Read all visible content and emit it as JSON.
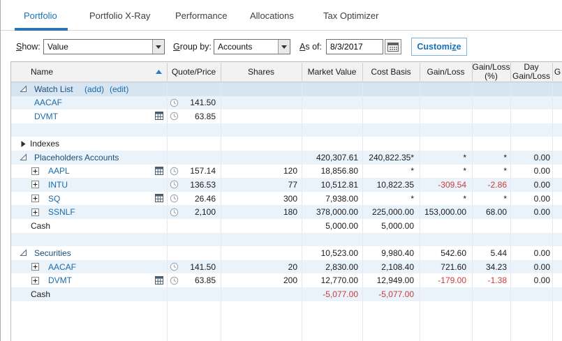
{
  "tabs": [
    {
      "label": "Portfolio",
      "active": true
    },
    {
      "label": "Portfolio X-Ray",
      "active": false
    },
    {
      "label": "Performance",
      "active": false
    },
    {
      "label": "Allocations",
      "active": false
    },
    {
      "label": "Tax Optimizer",
      "active": false
    }
  ],
  "toolbar": {
    "show": {
      "accel": "S",
      "rest": "how:",
      "value": "Value"
    },
    "group_by": {
      "accel": "G",
      "rest": "roup by:",
      "value": "Accounts"
    },
    "as_of": {
      "accel": "A",
      "rest": "s of:",
      "value": "8/3/2017"
    },
    "customize": {
      "pre": "Customi",
      "accel": "z",
      "post": "e"
    }
  },
  "table": {
    "name_header": "Name",
    "sort": {
      "column": "Name",
      "direction": "ascending"
    },
    "columns": [
      {
        "key": "qp",
        "lines": [
          "Quote/Price"
        ]
      },
      {
        "key": "shares",
        "lines": [
          "Shares"
        ]
      },
      {
        "key": "mv",
        "lines": [
          "Market Value"
        ]
      },
      {
        "key": "cb",
        "lines": [
          "Cost Basis"
        ]
      },
      {
        "key": "gl",
        "lines": [
          "Gain/Loss"
        ]
      },
      {
        "key": "glp",
        "lines": [
          "Gain/Loss",
          "(%)"
        ]
      },
      {
        "key": "day",
        "lines": [
          "Day",
          "Gain/Loss"
        ]
      },
      {
        "key": "g",
        "lines": [
          "",
          "G"
        ]
      }
    ],
    "rows": [
      {
        "kind": "group",
        "name": "Watch List",
        "links": [
          "(add)",
          "(edit)"
        ],
        "selected": true
      },
      {
        "kind": "witem",
        "name": "AACAF",
        "clock": true,
        "qp": "141.50"
      },
      {
        "kind": "witem",
        "name": "DVMT",
        "calc": true,
        "clock": true,
        "qp": "63.85"
      },
      {
        "kind": "empty"
      },
      {
        "kind": "collapsed",
        "name": "Indexes"
      },
      {
        "kind": "group",
        "name": "Placeholders Accounts",
        "mv": "420,307.61",
        "cb": "240,822.35*",
        "gl": "*",
        "glp": "*",
        "day": "0.00"
      },
      {
        "kind": "position",
        "name": "AAPL",
        "calc": true,
        "clock": true,
        "qp": "157.14",
        "shares": "120",
        "mv": "18,856.80",
        "cb": "*",
        "gl": "*",
        "glp": "*",
        "day": "0.00"
      },
      {
        "kind": "position",
        "name": "INTU",
        "clock": true,
        "qp": "136.53",
        "shares": "77",
        "mv": "10,512.81",
        "cb": "10,822.35",
        "gl": "-309.54",
        "glp": "-2.86",
        "day": "0.00"
      },
      {
        "kind": "position",
        "name": "SQ",
        "calc": true,
        "clock": true,
        "qp": "26.46",
        "shares": "300",
        "mv": "7,938.00",
        "cb": "*",
        "gl": "*",
        "glp": "*",
        "day": "0.00"
      },
      {
        "kind": "position",
        "name": "SSNLF",
        "clock": true,
        "qp": "2,100",
        "shares": "180",
        "mv": "378,000.00",
        "cb": "225,000.00",
        "gl": "153,000.00",
        "glp": "68.00",
        "day": "0.00"
      },
      {
        "kind": "cash",
        "name": "Cash",
        "mv": "5,000.00",
        "cb": "5,000.00"
      },
      {
        "kind": "empty"
      },
      {
        "kind": "group",
        "name": "Securities",
        "mv": "10,523.00",
        "cb": "9,980.40",
        "gl": "542.60",
        "glp": "5.44",
        "day": "0.00"
      },
      {
        "kind": "position",
        "name": "AACAF",
        "clock": true,
        "qp": "141.50",
        "shares": "20",
        "mv": "2,830.00",
        "cb": "2,108.40",
        "gl": "721.60",
        "glp": "34.23",
        "day": "0.00"
      },
      {
        "kind": "position",
        "name": "DVMT",
        "calc": true,
        "clock": true,
        "qp": "63.85",
        "shares": "200",
        "mv": "12,770.00",
        "cb": "12,949.00",
        "gl": "-179.00",
        "glp": "-1.38",
        "day": "0.00"
      },
      {
        "kind": "cash",
        "name": "Cash",
        "mv": "-5,077.00",
        "cb": "-5,077.00"
      }
    ]
  },
  "icons": [
    "expand-triangle-icon",
    "collapse-triangle-icon",
    "expand-plus-icon",
    "clock-icon",
    "report-icon",
    "sort-ascending-icon",
    "calendar-icon",
    "dropdown-arrow-icon"
  ],
  "colors": {
    "accent_blue": "#2e75b5",
    "active_tab": "#1973b4",
    "link": "#1a6ba8",
    "group_text": "#1c4e79",
    "negative": "#c93b3b",
    "row_alt": "#eaf2fa",
    "row_selected": "#d7e5f3"
  }
}
